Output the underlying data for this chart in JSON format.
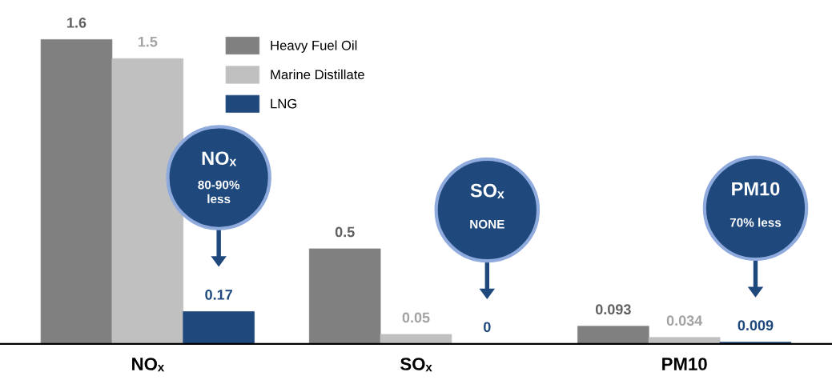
{
  "chart_data": {
    "type": "bar",
    "categories": [
      "NOₓ",
      "SOₓ",
      "PM10"
    ],
    "series": [
      {
        "name": "Heavy Fuel Oil",
        "color": "#808080",
        "values": [
          1.6,
          0.5,
          0.093
        ]
      },
      {
        "name": "Marine Distillate",
        "color": "#c0c0c0",
        "values": [
          1.5,
          0.05,
          0.034
        ]
      },
      {
        "name": "LNG",
        "color": "#1f497d",
        "values": [
          0.17,
          0,
          0.009
        ]
      }
    ],
    "data_labels": true,
    "legend": "top",
    "grid": false,
    "annotations": [
      "NOₓ\n80-90%\nless",
      "SOₓ\nNONE",
      "PM10\n70% less"
    ]
  }
}
